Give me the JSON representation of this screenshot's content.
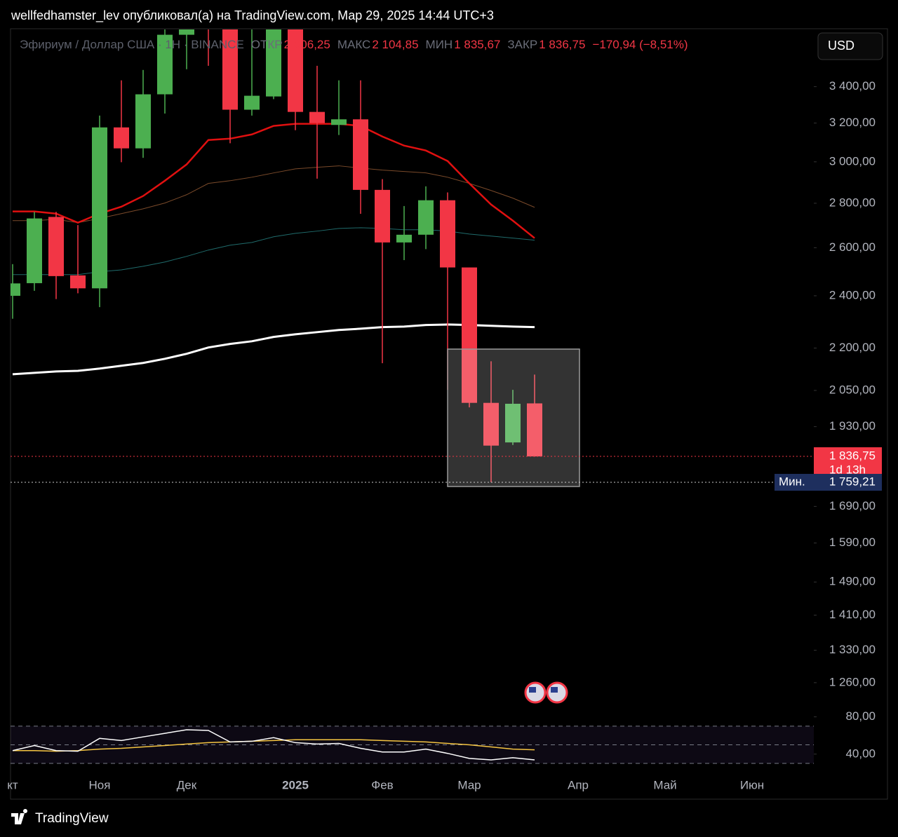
{
  "attribution": "wellfedhamster_lev опубликовал(а) на TradingView.com, Мар 29, 2025 14:44 UTC+3",
  "currency_button": "USD",
  "footer_brand": "TradingView",
  "chart_data": {
    "type": "candlestick",
    "symbol": "Эфириум / Доллар США · 1Н · BINANCE",
    "ohlc_legend": [
      {
        "label": "ОТКР",
        "value": "2 006,25"
      },
      {
        "label": "МАКС",
        "value": "2 104,85"
      },
      {
        "label": "МИН",
        "value": "1 835,67"
      },
      {
        "label": "ЗАКР",
        "value": "1 836,75"
      }
    ],
    "change": "−170,94 (−8,51%)",
    "categories": [
      "кт",
      null,
      null,
      null,
      "Ноя",
      null,
      null,
      null,
      "Дек",
      null,
      null,
      null,
      null,
      "2025",
      null,
      null,
      null,
      "Фев",
      null,
      null,
      null,
      "Мар",
      null,
      null,
      null,
      null,
      "Апр",
      null,
      null,
      null,
      "Май",
      null,
      null,
      null,
      "Июн",
      null,
      null
    ],
    "open": [
      2400,
      2451,
      2737,
      2483,
      2430,
      3177,
      3068,
      3357,
      3707,
      3995,
      3880,
      3272,
      3345,
      3750,
      3260,
      3190,
      3220,
      2863,
      2623,
      2657,
      2814,
      2516,
      2008,
      1880,
      2006.25,
      null,
      null,
      null,
      null,
      null,
      null,
      null,
      null,
      null,
      null,
      null,
      null
    ],
    "high": [
      2530,
      2760,
      2760,
      2700,
      3240,
      3436,
      3496,
      3800,
      4110,
      4110,
      4000,
      3740,
      3800,
      3800,
      3520,
      3436,
      3436,
      2915,
      2787,
      2880,
      2851,
      2516,
      2152,
      2052,
      2104.85,
      null,
      null,
      null,
      null,
      null,
      null,
      null,
      null,
      null,
      null,
      null,
      null
    ],
    "low": [
      2310,
      2420,
      2387,
      2410,
      2355,
      2998,
      3020,
      3251,
      3500,
      3520,
      3094,
      3240,
      3330,
      3162,
      2917,
      3137,
      2751,
      2145,
      2547,
      2594,
      2052,
      1993,
      1759.21,
      1872,
      1835.67,
      null,
      null,
      null,
      null,
      null,
      null,
      null,
      null,
      null,
      null,
      null,
      null
    ],
    "close": [
      2450,
      2730,
      2480,
      2430,
      3177,
      3068,
      3357,
      3707,
      3990,
      3880,
      3272,
      3349,
      3750,
      3260,
      3200,
      3220,
      2863,
      2623,
      2657,
      2814,
      2516,
      2008,
      1870,
      2005,
      1836.75,
      null,
      null,
      null,
      null,
      null,
      null,
      null,
      null,
      null,
      null,
      null,
      null
    ],
    "up_color": "#4caf50",
    "down_color": "#f23645",
    "lines": [
      {
        "color": "#ffffff",
        "values": [
          2106,
          2111,
          2116,
          2118,
          2126,
          2136,
          2146,
          2161,
          2179,
          2202,
          2215,
          2225,
          2241,
          2251,
          2259,
          2267,
          2272,
          2278,
          2280,
          2286,
          2288,
          2286,
          2283,
          2280,
          2278,
          null,
          null,
          null,
          null,
          null,
          null,
          null,
          null,
          null,
          null,
          null,
          null
        ]
      },
      {
        "color": "#1f6b6b",
        "values": [
          2486,
          2486,
          2486,
          2486,
          2498,
          2506,
          2521,
          2539,
          2563,
          2590,
          2611,
          2623,
          2648,
          2663,
          2673,
          2685,
          2688,
          2685,
          2679,
          2679,
          2673,
          2660,
          2651,
          2642,
          2633,
          null,
          null,
          null,
          null,
          null,
          null,
          null,
          null,
          null,
          null,
          null,
          null
        ]
      },
      {
        "color": "#7a4a2a",
        "values": [
          2720,
          2720,
          2726,
          2711,
          2730,
          2752,
          2774,
          2801,
          2840,
          2894,
          2907,
          2924,
          2945,
          2965,
          2973,
          2980,
          2969,
          2959,
          2952,
          2945,
          2924,
          2894,
          2860,
          2824,
          2781,
          null,
          null,
          null,
          null,
          null,
          null,
          null,
          null,
          null,
          null,
          null,
          null
        ]
      },
      {
        "color": "#e01010",
        "values": [
          2762,
          2762,
          2752,
          2711,
          2752,
          2784,
          2834,
          2907,
          2987,
          3111,
          3118,
          3140,
          3185,
          3196,
          3196,
          3196,
          3185,
          3129,
          3082,
          3057,
          3004,
          2894,
          2794,
          2720,
          2642,
          null,
          null,
          null,
          null,
          null,
          null,
          null,
          null,
          null,
          null,
          null,
          null
        ]
      }
    ],
    "log_scale": true,
    "ylim": [
      1215,
      3740
    ],
    "yticks": [
      {
        "value": 3400,
        "label": "3 400,00"
      },
      {
        "value": 3200,
        "label": "3 200,00"
      },
      {
        "value": 3000,
        "label": "3 000,00"
      },
      {
        "value": 2800,
        "label": "2 800,00"
      },
      {
        "value": 2600,
        "label": "2 600,00"
      },
      {
        "value": 2400,
        "label": "2 400,00"
      },
      {
        "value": 2200,
        "label": "2 200,00"
      },
      {
        "value": 2050,
        "label": "2 050,00"
      },
      {
        "value": 1930,
        "label": "1 930,00"
      },
      {
        "value": 1690,
        "label": "1 690,00"
      },
      {
        "value": 1590,
        "label": "1 590,00"
      },
      {
        "value": 1490,
        "label": "1 490,00"
      },
      {
        "value": 1410,
        "label": "1 410,00"
      },
      {
        "value": 1330,
        "label": "1 330,00"
      },
      {
        "value": 1260,
        "label": "1 260,00"
      }
    ],
    "last_price": {
      "value": 1836.75,
      "label": "1 836,75",
      "countdown": "1d 13h",
      "color": "#f23645"
    },
    "min_price": {
      "name": "Мин.",
      "value": 1759.21,
      "label": "1 759,21",
      "color": "#1e2f5e"
    },
    "rsi": {
      "ylim": [
        18,
        91
      ],
      "yticks": [
        {
          "value": 80,
          "label": "80,00"
        },
        {
          "value": 40,
          "label": "40,00"
        }
      ],
      "levels": [
        70,
        50,
        30
      ],
      "lines": [
        {
          "color": "#f5c542",
          "values": [
            43.8,
            43.8,
            43.1,
            43.8,
            45.4,
            46.2,
            47.7,
            49.2,
            50.8,
            52.3,
            53.1,
            53.8,
            54.6,
            55.4,
            55.4,
            55.4,
            55.4,
            54.6,
            53.8,
            53.1,
            51.5,
            50,
            47.7,
            45.4,
            44.6,
            null,
            null,
            null,
            null,
            null,
            null,
            null,
            null,
            null,
            null,
            null,
            null
          ]
        },
        {
          "color": "#ffffff",
          "values": [
            43.8,
            49.2,
            43.8,
            43.1,
            56.9,
            54.6,
            58.5,
            62.3,
            66.2,
            65.4,
            53.1,
            53.8,
            57.7,
            52.3,
            50.8,
            51.5,
            46.2,
            42.3,
            42.3,
            45.4,
            40.8,
            35.4,
            33.8,
            36.2,
            33.8,
            null,
            null,
            null,
            null,
            null,
            null,
            null,
            null,
            null,
            null,
            null,
            null
          ]
        }
      ]
    }
  }
}
